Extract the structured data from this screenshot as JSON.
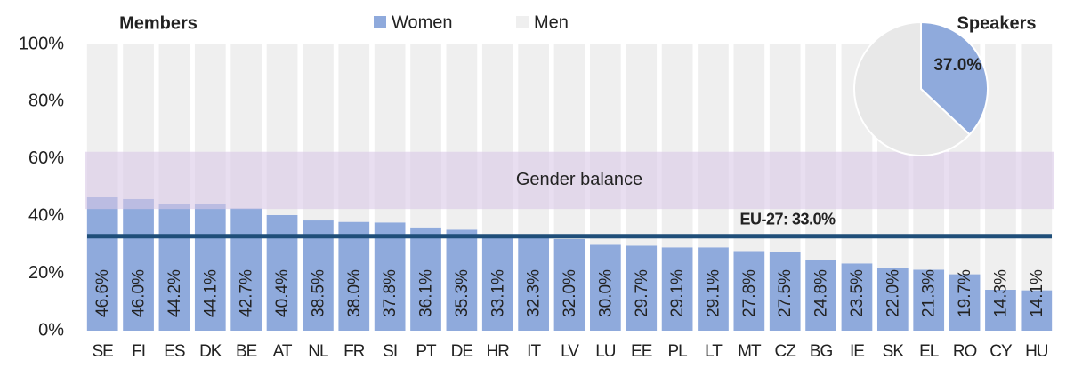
{
  "chart_data": [
    {
      "type": "bar",
      "title": "Members",
      "categories": [
        "SE",
        "FI",
        "ES",
        "DK",
        "BE",
        "AT",
        "NL",
        "FR",
        "SI",
        "PT",
        "DE",
        "HR",
        "IT",
        "LV",
        "LU",
        "EE",
        "PL",
        "LT",
        "MT",
        "CZ",
        "BG",
        "IE",
        "SK",
        "EL",
        "RO",
        "CY",
        "HU"
      ],
      "series": [
        {
          "name": "Women",
          "color": "#8faadc",
          "values": [
            46.6,
            46.0,
            44.2,
            44.1,
            42.7,
            40.4,
            38.5,
            38.0,
            37.8,
            36.1,
            35.3,
            33.1,
            32.3,
            32.0,
            30.0,
            29.7,
            29.1,
            29.1,
            27.8,
            27.5,
            24.8,
            23.5,
            22.0,
            21.3,
            19.7,
            14.3,
            14.1
          ],
          "value_labels": [
            "46.6%",
            "46.0%",
            "44.2%",
            "44.1%",
            "42.7%",
            "40.4%",
            "38.5%",
            "38.0%",
            "37.8%",
            "36.1%",
            "35.3%",
            "33.1%",
            "32.3%",
            "32.0%",
            "30.0%",
            "29.7%",
            "29.1%",
            "29.1%",
            "27.8%",
            "27.5%",
            "24.8%",
            "23.5%",
            "22.0%",
            "21.3%",
            "19.7%",
            "14.3%",
            "14.1%"
          ]
        },
        {
          "name": "Men",
          "color": "#efefef",
          "values": [
            53.4,
            54.0,
            55.8,
            55.9,
            57.3,
            59.6,
            61.5,
            62.0,
            62.2,
            63.9,
            64.7,
            66.9,
            67.7,
            68.0,
            70.0,
            70.3,
            70.9,
            70.9,
            72.2,
            72.5,
            75.2,
            76.5,
            78.0,
            78.7,
            80.3,
            85.7,
            85.9
          ]
        }
      ],
      "ylim": [
        0,
        100
      ],
      "yticks": [
        {
          "value": 0,
          "label": "0%"
        },
        {
          "value": 20,
          "label": "20%"
        },
        {
          "value": 40,
          "label": "40%"
        },
        {
          "value": 60,
          "label": "60%"
        },
        {
          "value": 80,
          "label": "80%"
        },
        {
          "value": 100,
          "label": "100%"
        }
      ],
      "gender_balance": {
        "label": "Gender balance",
        "range": [
          42.5,
          62.5
        ],
        "color": "#d9c8e6"
      },
      "eu_average": {
        "label": "EU-27: 33.0%",
        "value": 33.0,
        "color": "#1f4e79"
      }
    },
    {
      "type": "pie",
      "title": "Speakers",
      "values": [
        37.0,
        63.0
      ],
      "value_labels": [
        "37.0%",
        null
      ],
      "colors": [
        "#8faadc",
        "#e8e8e8"
      ]
    }
  ]
}
